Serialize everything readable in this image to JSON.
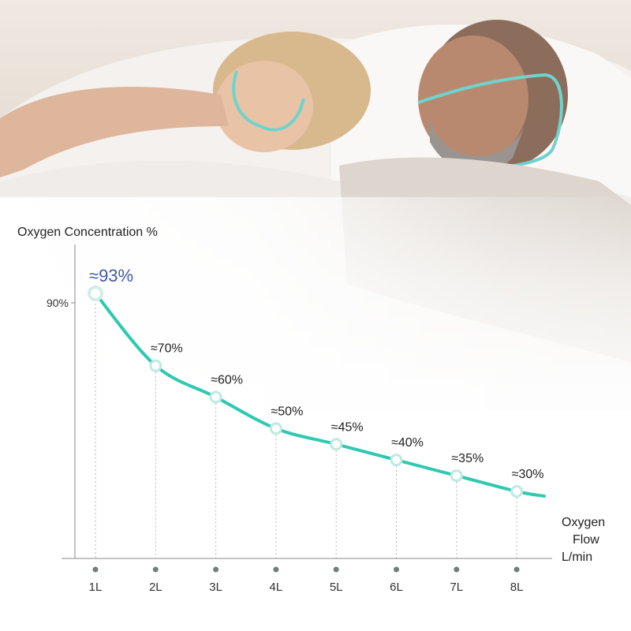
{
  "chart_data": {
    "type": "line",
    "ylabel": "Oxygen Concentration %",
    "xlabel_lines": [
      "Oxygen",
      "Flow",
      "L/min"
    ],
    "y_tick": "90%",
    "categories": [
      "1L",
      "2L",
      "3L",
      "4L",
      "5L",
      "6L",
      "7L",
      "8L"
    ],
    "values": [
      93,
      70,
      60,
      50,
      45,
      40,
      35,
      30
    ],
    "value_labels": [
      "≈93%",
      "≈70%",
      "≈60%",
      "≈50%",
      "≈45%",
      "≈40%",
      "≈35%",
      "≈30%"
    ],
    "line_color": "#2ec9b0",
    "highlight_color": "#3d5ba8"
  }
}
